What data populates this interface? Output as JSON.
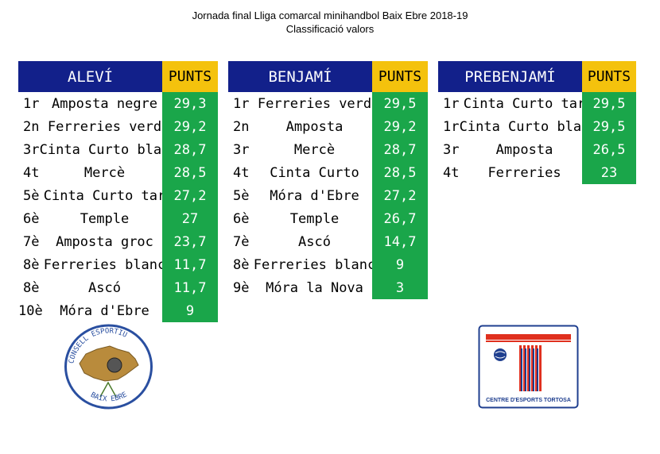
{
  "header": {
    "title": "Jornada final Lliga comarcal minihandbol Baix Ebre 2018-19",
    "subtitle": "Classificació valors"
  },
  "tables": [
    {
      "category": "ALEVÍ",
      "points_label": "PUNTS",
      "rows": [
        {
          "pos": "1r",
          "team": "Amposta negre",
          "points": "29,3"
        },
        {
          "pos": "2n",
          "team": "Ferreries verd",
          "points": "29,2"
        },
        {
          "pos": "3r",
          "team": "Cinta Curto blau",
          "points": "28,7"
        },
        {
          "pos": "4t",
          "team": "Mercè",
          "points": "28,5"
        },
        {
          "pos": "5è",
          "team": "Cinta Curto tar",
          "points": "27,2"
        },
        {
          "pos": "6è",
          "team": "Temple",
          "points": "27"
        },
        {
          "pos": "7è",
          "team": "Amposta groc",
          "points": "23,7"
        },
        {
          "pos": "8è",
          "team": "Ferreries blanc",
          "points": "11,7"
        },
        {
          "pos": "8è",
          "team": "Ascó",
          "points": "11,7"
        },
        {
          "pos": "10è",
          "team": "Móra d'Ebre",
          "points": "9"
        }
      ]
    },
    {
      "category": "BENJAMÍ",
      "points_label": "PUNTS",
      "rows": [
        {
          "pos": "1r",
          "team": "Ferreries verd",
          "points": "29,5"
        },
        {
          "pos": "2n",
          "team": "Amposta",
          "points": "29,2"
        },
        {
          "pos": "3r",
          "team": "Mercè",
          "points": "28,7"
        },
        {
          "pos": "4t",
          "team": "Cinta Curto",
          "points": "28,5"
        },
        {
          "pos": "5è",
          "team": "Móra d'Ebre",
          "points": "27,2"
        },
        {
          "pos": "6è",
          "team": "Temple",
          "points": "26,7"
        },
        {
          "pos": "7è",
          "team": "Ascó",
          "points": "14,7"
        },
        {
          "pos": "8è",
          "team": "Ferreries blanc",
          "points": "9"
        },
        {
          "pos": "9è",
          "team": "Móra la Nova",
          "points": "3"
        }
      ]
    },
    {
      "category": "PREBENJAMÍ",
      "points_label": "PUNTS",
      "rows": [
        {
          "pos": "1r",
          "team": "Cinta Curto tar",
          "points": "29,5"
        },
        {
          "pos": "1r",
          "team": "Cinta Curto blau",
          "points": "29,5"
        },
        {
          "pos": "3r",
          "team": "Amposta",
          "points": "26,5"
        },
        {
          "pos": "4t",
          "team": "Ferreries",
          "points": "23"
        }
      ]
    }
  ],
  "logos": {
    "left": {
      "text_top": "CONSELL ESPORTIU",
      "text_bottom": "BAIX EBRE"
    },
    "right": {
      "text": "CENTRE D'ESPORTS TORTOSA"
    }
  },
  "colors": {
    "header_blue": "#12208a",
    "points_yellow": "#f4c20d",
    "points_green": "#1aa64a"
  }
}
